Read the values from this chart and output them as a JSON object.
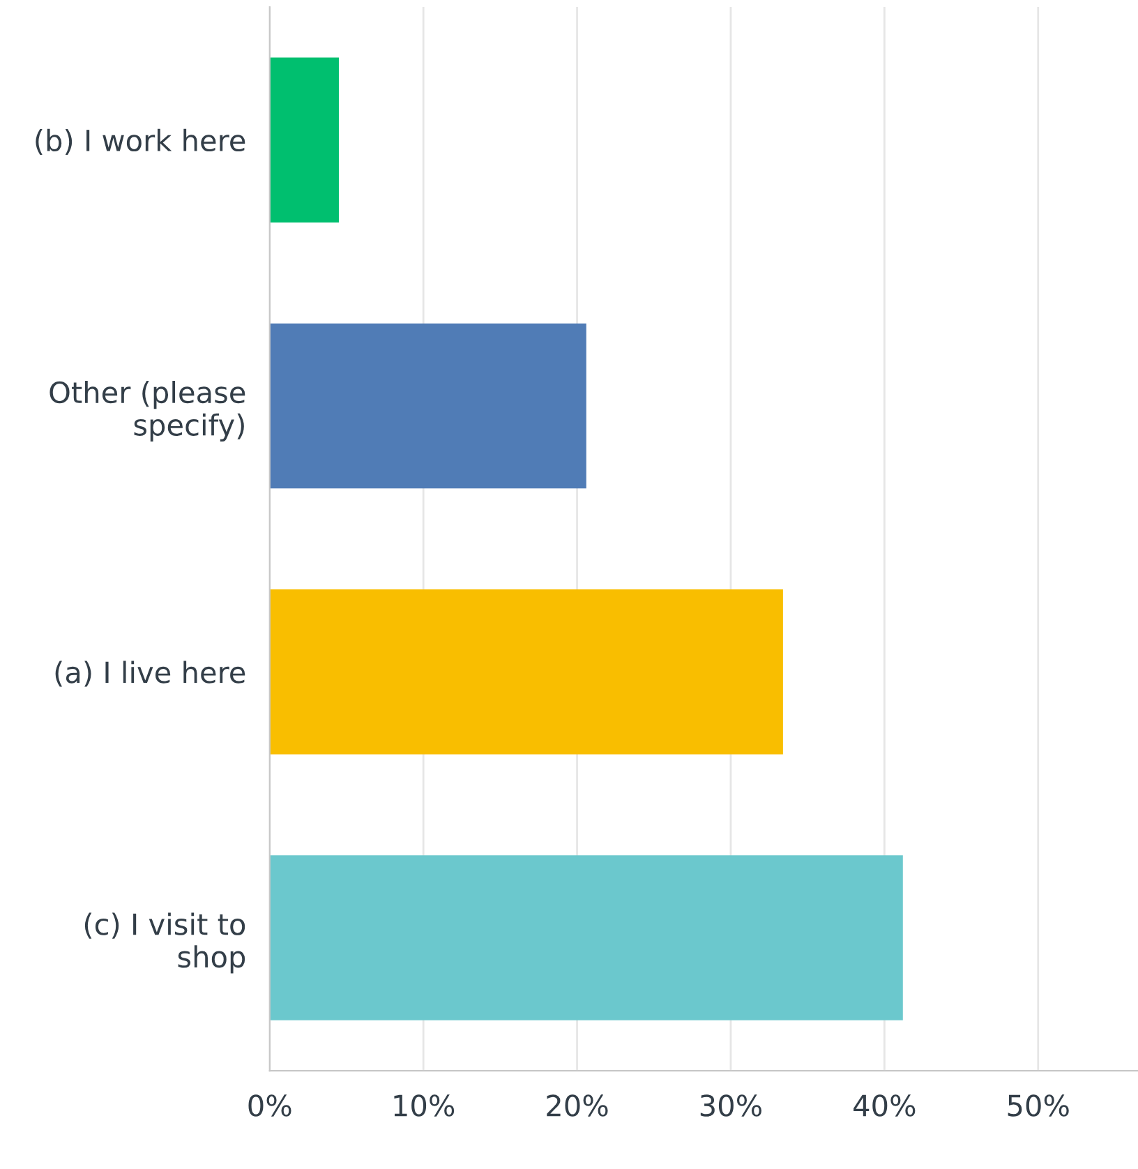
{
  "chart_data": {
    "type": "bar",
    "orientation": "horizontal",
    "categories": [
      "(b) I work here",
      "Other (please\nspecify)",
      "(a) I live here",
      "(c) I visit to\nshop"
    ],
    "values": [
      4.5,
      20.6,
      33.4,
      41.2
    ],
    "colors": [
      "#00bf6f",
      "#507cb6",
      "#f9be00",
      "#6bc8cd"
    ],
    "xlim": [
      0,
      56.5
    ],
    "xticks": [
      {
        "value": 0,
        "label": "0%"
      },
      {
        "value": 10,
        "label": "10%"
      },
      {
        "value": 20,
        "label": "20%"
      },
      {
        "value": 30,
        "label": "30%"
      },
      {
        "value": 40,
        "label": "40%"
      },
      {
        "value": 50,
        "label": "50%"
      }
    ],
    "grid": "x"
  }
}
